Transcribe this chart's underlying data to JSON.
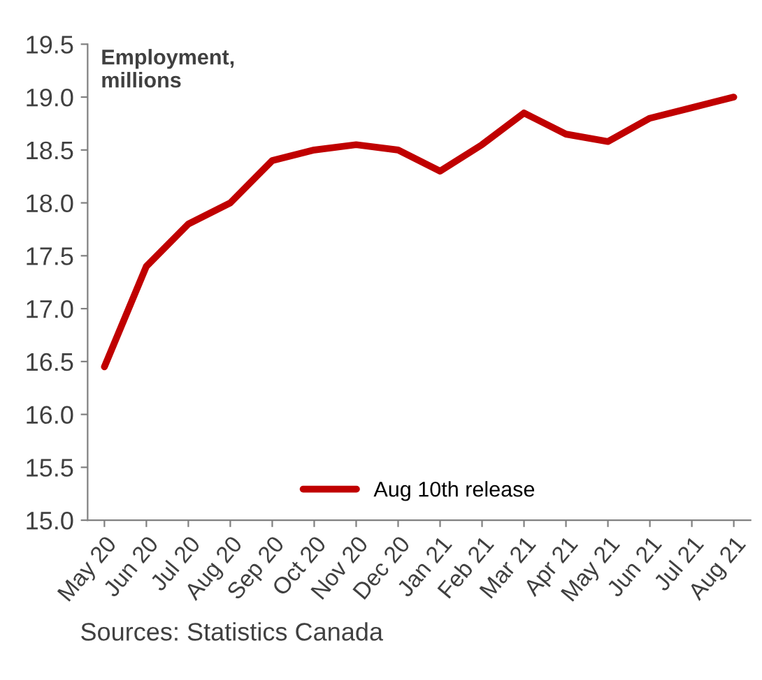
{
  "chart_data": {
    "type": "line",
    "ylabel": "Employment,\nmillions",
    "categories": [
      "May 20",
      "Jun 20",
      "Jul 20",
      "Aug 20",
      "Sep 20",
      "Oct 20",
      "Nov 20",
      "Dec 20",
      "Jan 21",
      "Feb 21",
      "Mar 21",
      "Apr 21",
      "May 21",
      "Jun 21",
      "Jul 21",
      "Aug 21"
    ],
    "series": [
      {
        "name": "Aug 10th release",
        "color": "#c00000",
        "values": [
          16.45,
          17.4,
          17.8,
          18.0,
          18.4,
          18.5,
          18.55,
          18.5,
          18.3,
          18.55,
          18.85,
          18.65,
          18.58,
          18.8,
          18.9,
          19.0
        ]
      }
    ],
    "ylim": [
      15.0,
      19.5
    ],
    "yticks": [
      {
        "value": 15.0,
        "label": "15.0"
      },
      {
        "value": 15.5,
        "label": "15.5"
      },
      {
        "value": 16.0,
        "label": "16.0"
      },
      {
        "value": 16.5,
        "label": "16.5"
      },
      {
        "value": 17.0,
        "label": "17.0"
      },
      {
        "value": 17.5,
        "label": "17.5"
      },
      {
        "value": 18.0,
        "label": "18.0"
      },
      {
        "value": 18.5,
        "label": "18.5"
      },
      {
        "value": 19.0,
        "label": "19.0"
      },
      {
        "value": 19.5,
        "label": "19.5"
      }
    ],
    "legend": "bottom",
    "grid": false,
    "marker": "none",
    "line_style": "solid",
    "annotations": [
      "Sources: Statistics Canada"
    ]
  }
}
